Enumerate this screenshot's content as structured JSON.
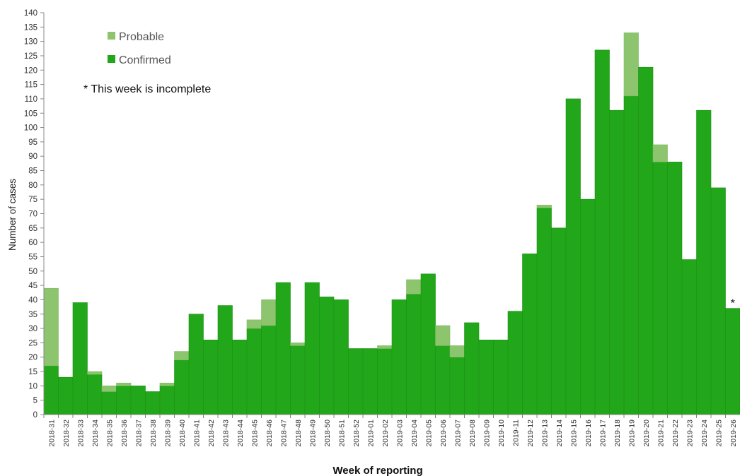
{
  "chart_data": {
    "type": "bar",
    "stacked": true,
    "xlabel": "Week of reporting",
    "ylabel": "Number of cases",
    "ylim": [
      0,
      140
    ],
    "ytick_step": 5,
    "categories": [
      "2018-31",
      "2018-32",
      "2018-33",
      "2018-34",
      "2018-35",
      "2018-36",
      "2018-37",
      "2018-38",
      "2018-39",
      "2018-40",
      "2018-41",
      "2018-42",
      "2018-43",
      "2018-44",
      "2018-45",
      "2018-46",
      "2018-47",
      "2018-48",
      "2018-49",
      "2018-50",
      "2018-51",
      "2018-52",
      "2019-01",
      "2019-02",
      "2019-03",
      "2019-04",
      "2019-05",
      "2019-06",
      "2019-07",
      "2019-08",
      "2019-09",
      "2019-10",
      "2019-11",
      "2019-12",
      "2019-13",
      "2019-14",
      "2019-15",
      "2019-16",
      "2019-17",
      "2019-18",
      "2019-19",
      "2019-20",
      "2019-21",
      "2019-22",
      "2019-23",
      "2019-24",
      "2019-25",
      "2019-26"
    ],
    "series": [
      {
        "name": "Confirmed",
        "color": "#22a61a",
        "values": [
          17,
          13,
          39,
          14,
          8,
          10,
          10,
          8,
          10,
          19,
          35,
          26,
          38,
          26,
          30,
          31,
          46,
          24,
          46,
          41,
          40,
          23,
          23,
          23,
          40,
          42,
          49,
          24,
          20,
          32,
          26,
          26,
          36,
          56,
          72,
          65,
          110,
          75,
          127,
          106,
          111,
          121,
          88,
          88,
          54,
          106,
          79,
          37
        ]
      },
      {
        "name": "Probable",
        "color": "#8cc56e",
        "values": [
          27,
          0,
          0,
          1,
          2,
          1,
          0,
          0,
          1,
          3,
          0,
          0,
          0,
          0,
          3,
          9,
          0,
          1,
          0,
          0,
          0,
          0,
          0,
          1,
          0,
          5,
          0,
          7,
          4,
          0,
          0,
          0,
          0,
          0,
          1,
          0,
          0,
          0,
          0,
          0,
          22,
          0,
          6,
          0,
          0,
          0,
          0,
          0
        ]
      }
    ],
    "legend": {
      "placement": "top-left",
      "order": [
        "Probable",
        "Confirmed"
      ]
    },
    "annotations": {
      "note": "* This week is incomplete",
      "incomplete_marker": "*",
      "incomplete_category": "2019-26"
    },
    "grid": false
  }
}
